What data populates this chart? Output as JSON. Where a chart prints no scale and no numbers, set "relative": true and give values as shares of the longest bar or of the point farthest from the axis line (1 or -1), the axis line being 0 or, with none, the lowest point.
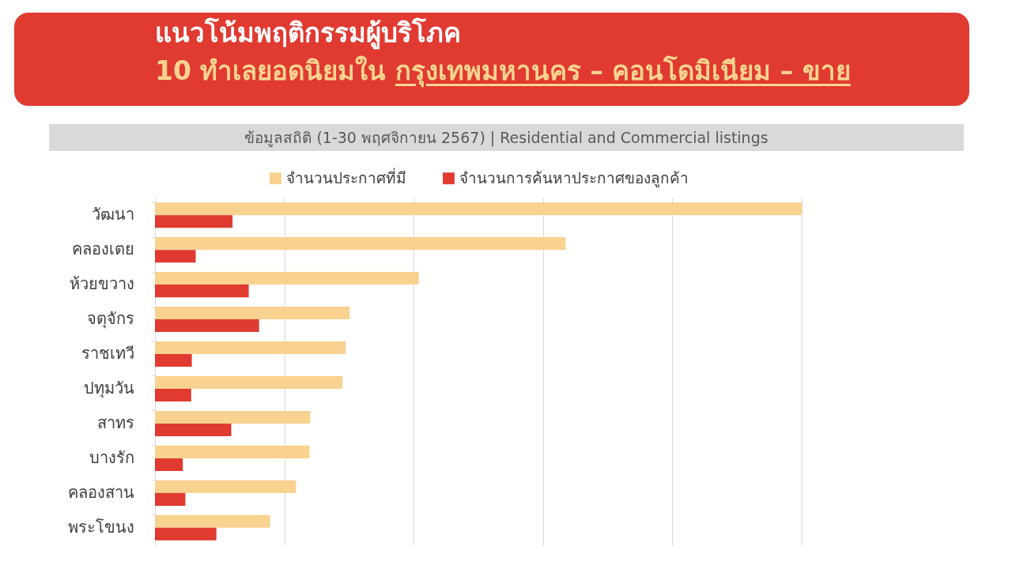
{
  "chart_data": {
    "type": "bar",
    "orientation": "horizontal",
    "relative": true,
    "title": "แนวโน้มพฤติกรรมผู้บริโภค",
    "subtitle": "10 ทำเลยอดนิยมใน กรุงเทพมหานคร – คอนโดมิเนียม – ขาย",
    "annotations": [
      "ข้อมูลสถิติ (1-30 พฤศจิกายน 2567) | Residential and Commercial listings"
    ],
    "categories": [
      "วัฒนา",
      "คลองเตย",
      "ห้วยขวาง",
      "จตุจักร",
      "ราชเทวี",
      "ปทุมวัน",
      "สาทร",
      "บางรัก",
      "คลองสาน",
      "พระโขนง"
    ],
    "series": [
      {
        "name": "จำนวนประกาศที่มี",
        "color": "#f9d28f",
        "values": [
          1,
          0.635,
          0.408,
          0.301,
          0.295,
          0.29,
          0.24,
          0.239,
          0.218,
          0.178
        ]
      },
      {
        "name": "จำนวนการค้นหาประกาศของลูกค้า",
        "color": "#e03a31",
        "values": [
          0.12,
          0.063,
          0.145,
          0.161,
          0.057,
          0.056,
          0.118,
          0.043,
          0.047,
          0.095
        ]
      }
    ],
    "legend": "top",
    "grid": "x"
  }
}
